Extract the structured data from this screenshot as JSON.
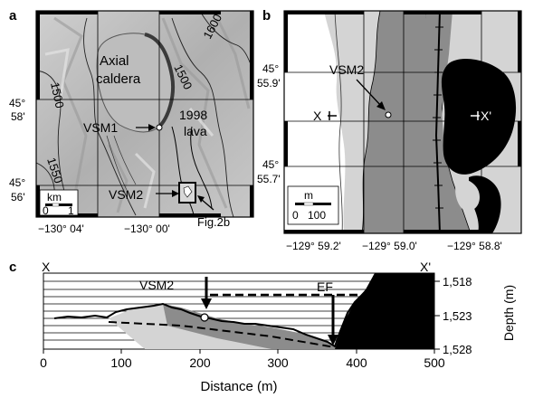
{
  "panel_a": {
    "letter": "a",
    "place_label_line1": "Axial",
    "place_label_line2": "caldera",
    "lava_label_line1": "1998",
    "lava_label_line2": "lava",
    "site_vsm1": "VSM1",
    "site_vsm2": "VSM2",
    "fig_ref": "Fig.2b",
    "contour_1600": "1600",
    "contour_1500": "1500",
    "contour_1500_left": "1500",
    "contour_1550": "1550",
    "lat_label_1_deg": "45°",
    "lat_label_1_min": "58'",
    "lat_label_2_deg": "45°",
    "lat_label_2_min": "56'",
    "lon_label_1": "−130° 04'",
    "lon_label_2": "−130° 00'",
    "scale_unit": "km",
    "scale_0": "0",
    "scale_1": "1"
  },
  "panel_b": {
    "letter": "b",
    "site_vsm2": "VSM2",
    "x_label": "X",
    "x_prime_label": "X'",
    "lat_label_1_deg": "45°",
    "lat_label_1_min": "55.9'",
    "lat_label_2_deg": "45°",
    "lat_label_2_min": "55.7'",
    "lon_label_1": "−129° 59.2'",
    "lon_label_2": "−129° 59.0'",
    "lon_label_3": "−129° 58.8'",
    "scale_unit": "m",
    "scale_0": "0",
    "scale_100": "100"
  },
  "panel_c": {
    "letter": "c",
    "x_label": "X",
    "x_prime_label": "X'",
    "site_vsm2": "VSM2",
    "ef_label": "EF",
    "xlabel": "Distance (m)",
    "ylabel": "Depth (m)",
    "x_ticks": [
      "0",
      "100",
      "200",
      "300",
      "400",
      "500"
    ],
    "y_ticks": [
      "1,518",
      "1,523",
      "1,528"
    ]
  },
  "colors": {
    "lava_black": "#000000",
    "flow_dark_gray": "#8c8c8c",
    "flow_light_gray": "#d4d4d4",
    "relief_gray": "#b4b4b4"
  }
}
